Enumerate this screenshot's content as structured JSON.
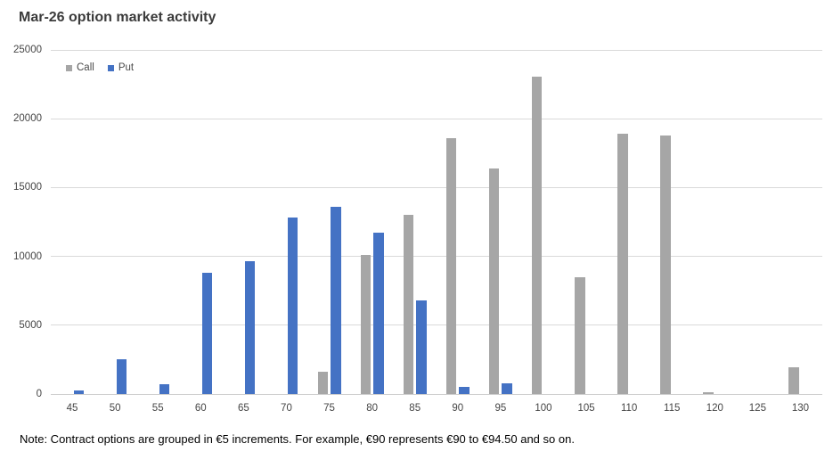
{
  "title": "Mar-26 option market activity",
  "note": "Note: Contract options are grouped in €5 increments. For example, €90 represents €90 to €94.50 and so on.",
  "legend": {
    "items": [
      {
        "label": "Call",
        "color": "#A6A6A6"
      },
      {
        "label": "Put",
        "color": "#4472C4"
      }
    ]
  },
  "colors": {
    "background": "#FFFFFF",
    "title": "#3B3B3B",
    "grid": "#D9D9D9",
    "axis_line": "#CFCFCF",
    "tick_label": "#454545",
    "call": "#A6A6A6",
    "put": "#4472C4"
  },
  "chart_data": {
    "type": "bar",
    "title": "Mar-26 option market activity",
    "categories": [
      "45",
      "50",
      "55",
      "60",
      "65",
      "70",
      "75",
      "80",
      "85",
      "90",
      "95",
      "100",
      "105",
      "110",
      "115",
      "120",
      "125",
      "130"
    ],
    "series": [
      {
        "name": "Call",
        "color": "#A6A6A6",
        "values": [
          0,
          0,
          0,
          0,
          0,
          0,
          1650,
          10100,
          13000,
          18600,
          16400,
          23050,
          8500,
          18900,
          18800,
          150,
          0,
          1950
        ]
      },
      {
        "name": "Put",
        "color": "#4472C4",
        "values": [
          250,
          2500,
          700,
          8800,
          9650,
          12800,
          13600,
          11700,
          6800,
          500,
          800,
          0,
          0,
          0,
          0,
          0,
          0,
          0
        ]
      }
    ],
    "xlabel": "",
    "ylabel": "",
    "ylim": [
      0,
      25000
    ],
    "ytick_step": 5000,
    "y_tick_labels": [
      "0",
      "5000",
      "10000",
      "15000",
      "20000",
      "25000"
    ],
    "grid": true,
    "legend_position": "top-left-inside"
  }
}
